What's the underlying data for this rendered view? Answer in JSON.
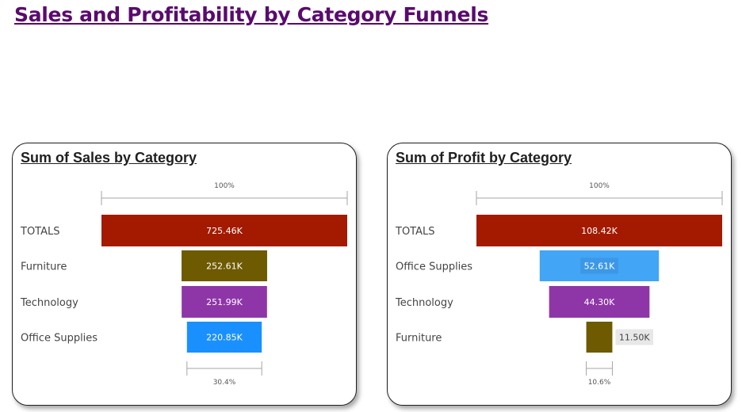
{
  "page": {
    "title": "Sales and Profitability by Category Funnels"
  },
  "chart_data": [
    {
      "type": "funnel",
      "title": "Sum of Sales by Category",
      "categories": [
        "TOTALS",
        "Furniture",
        "Technology",
        "Office Supplies"
      ],
      "values": [
        725.46,
        252.61,
        251.99,
        220.85
      ],
      "value_labels": [
        "725.46K",
        "252.61K",
        "251.99K",
        "220.85K"
      ],
      "colors": [
        "#a31a00",
        "#6e5a00",
        "#8e36a8",
        "#1a90ff"
      ],
      "top_percent_label": "100%",
      "bottom_percent_label": "30.4%"
    },
    {
      "type": "funnel",
      "title": "Sum of Profit by Category",
      "categories": [
        "TOTALS",
        "Office Supplies",
        "Technology",
        "Furniture"
      ],
      "values": [
        108.42,
        52.61,
        44.3,
        11.5
      ],
      "value_labels": [
        "108.42K",
        "52.61K",
        "44.30K",
        "11.50K"
      ],
      "colors": [
        "#a31a00",
        "#42a5f5",
        "#8e36a8",
        "#6e5a00"
      ],
      "top_percent_label": "100%",
      "bottom_percent_label": "10.6%"
    }
  ]
}
